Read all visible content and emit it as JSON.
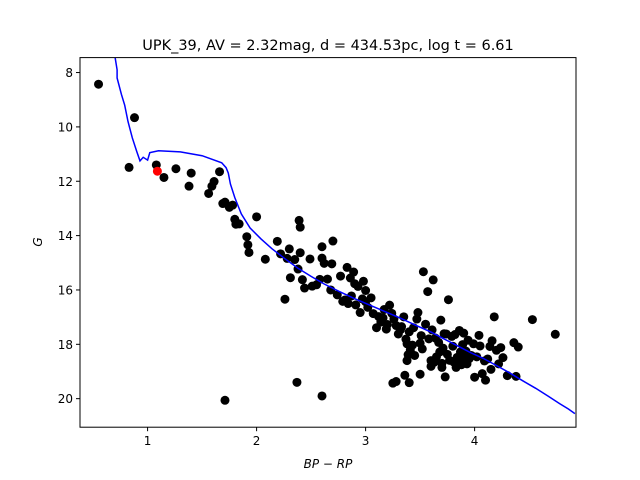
{
  "chart_data": {
    "type": "scatter",
    "title": "UPK_39, AV = 2.32mag, d = 434.53pc, log t = 6.61",
    "xlabel": "BP − RP",
    "ylabel": "G",
    "xlim": [
      0.38,
      4.93
    ],
    "ylim": [
      21.05,
      7.45
    ],
    "y_inverted": true,
    "grid": false,
    "xticks": [
      1,
      2,
      3,
      4
    ],
    "yticks": [
      8,
      10,
      12,
      14,
      16,
      18,
      20
    ],
    "colors": {
      "stars": "#000000",
      "highlight": "#ff0000",
      "isochrone": "#0000ff"
    },
    "highlight_point": {
      "x": 1.09,
      "y": 11.63
    },
    "points": [
      [
        0.55,
        8.43
      ],
      [
        0.88,
        9.66
      ],
      [
        0.83,
        11.49
      ],
      [
        1.08,
        11.4
      ],
      [
        1.15,
        11.86
      ],
      [
        1.26,
        11.54
      ],
      [
        1.38,
        12.18
      ],
      [
        1.4,
        11.7
      ],
      [
        1.56,
        12.45
      ],
      [
        1.59,
        12.18
      ],
      [
        1.61,
        12.01
      ],
      [
        1.66,
        11.65
      ],
      [
        1.69,
        12.82
      ],
      [
        1.71,
        12.77
      ],
      [
        1.75,
        12.96
      ],
      [
        1.78,
        12.88
      ],
      [
        1.8,
        13.4
      ],
      [
        1.81,
        13.58
      ],
      [
        1.84,
        13.57
      ],
      [
        1.91,
        14.04
      ],
      [
        1.92,
        14.34
      ],
      [
        1.93,
        14.62
      ],
      [
        2.0,
        13.31
      ],
      [
        2.08,
        14.87
      ],
      [
        2.19,
        14.21
      ],
      [
        2.22,
        14.67
      ],
      [
        2.26,
        16.34
      ],
      [
        2.28,
        14.84
      ],
      [
        2.3,
        14.49
      ],
      [
        2.31,
        15.55
      ],
      [
        2.35,
        14.88
      ],
      [
        2.38,
        15.23
      ],
      [
        2.39,
        13.44
      ],
      [
        2.4,
        13.69
      ],
      [
        2.4,
        14.63
      ],
      [
        2.42,
        15.62
      ],
      [
        2.44,
        15.93
      ],
      [
        2.49,
        14.86
      ],
      [
        2.51,
        15.86
      ],
      [
        2.55,
        15.81
      ],
      [
        2.58,
        15.61
      ],
      [
        2.6,
        14.83
      ],
      [
        2.6,
        14.41
      ],
      [
        2.62,
        15.02
      ],
      [
        2.65,
        15.6
      ],
      [
        2.68,
        16.0
      ],
      [
        2.69,
        15.04
      ],
      [
        2.7,
        14.2
      ],
      [
        2.74,
        16.18
      ],
      [
        2.77,
        15.49
      ],
      [
        2.79,
        16.42
      ],
      [
        2.81,
        16.37
      ],
      [
        2.83,
        15.17
      ],
      [
        2.84,
        16.5
      ],
      [
        2.86,
        15.56
      ],
      [
        2.87,
        16.22
      ],
      [
        2.89,
        15.34
      ],
      [
        2.9,
        15.77
      ],
      [
        2.91,
        16.55
      ],
      [
        2.93,
        15.87
      ],
      [
        2.95,
        16.83
      ],
      [
        2.97,
        16.33
      ],
      [
        2.98,
        15.68
      ],
      [
        3.0,
        16.43
      ],
      [
        3.0,
        16.02
      ],
      [
        3.02,
        16.64
      ],
      [
        3.05,
        16.29
      ],
      [
        3.07,
        16.87
      ],
      [
        3.1,
        17.39
      ],
      [
        3.12,
        16.98
      ],
      [
        3.14,
        17.18
      ],
      [
        3.16,
        17.03
      ],
      [
        3.17,
        16.72
      ],
      [
        3.19,
        17.44
      ],
      [
        3.2,
        17.27
      ],
      [
        3.22,
        16.56
      ],
      [
        3.24,
        16.86
      ],
      [
        3.26,
        17.07
      ],
      [
        3.28,
        17.31
      ],
      [
        3.3,
        17.62
      ],
      [
        3.32,
        17.46
      ],
      [
        3.33,
        17.35
      ],
      [
        3.35,
        16.99
      ],
      [
        3.37,
        17.81
      ],
      [
        3.38,
        17.98
      ],
      [
        3.39,
        18.38
      ],
      [
        3.4,
        17.54
      ],
      [
        3.41,
        18.21
      ],
      [
        3.43,
        18.03
      ],
      [
        3.44,
        17.39
      ],
      [
        3.45,
        18.41
      ],
      [
        3.47,
        17.07
      ],
      [
        3.48,
        16.83
      ],
      [
        3.5,
        17.96
      ],
      [
        3.51,
        17.68
      ],
      [
        3.52,
        18.17
      ],
      [
        3.53,
        15.33
      ],
      [
        3.55,
        17.26
      ],
      [
        3.57,
        16.06
      ],
      [
        3.58,
        17.8
      ],
      [
        3.6,
        18.81
      ],
      [
        3.61,
        17.47
      ],
      [
        3.62,
        15.63
      ],
      [
        3.63,
        18.66
      ],
      [
        3.64,
        17.77
      ],
      [
        3.65,
        18.46
      ],
      [
        3.67,
        17.93
      ],
      [
        3.68,
        18.28
      ],
      [
        3.69,
        17.11
      ],
      [
        3.7,
        18.85
      ],
      [
        3.71,
        18.14
      ],
      [
        3.72,
        17.61
      ],
      [
        3.73,
        19.2
      ],
      [
        3.74,
        17.62
      ],
      [
        3.75,
        18.37
      ],
      [
        3.76,
        16.36
      ],
      [
        3.77,
        18.59
      ],
      [
        3.79,
        17.71
      ],
      [
        3.8,
        18.07
      ],
      [
        3.81,
        18.66
      ],
      [
        3.82,
        17.64
      ],
      [
        3.83,
        18.85
      ],
      [
        3.84,
        18.48
      ],
      [
        3.85,
        18.59
      ],
      [
        3.86,
        17.49
      ],
      [
        3.87,
        18.28
      ],
      [
        3.88,
        18.75
      ],
      [
        3.89,
        18.01
      ],
      [
        3.9,
        17.59
      ],
      [
        3.91,
        18.5
      ],
      [
        3.92,
        18.25
      ],
      [
        3.93,
        18.72
      ],
      [
        3.94,
        17.85
      ],
      [
        3.95,
        18.53
      ],
      [
        3.97,
        18.41
      ],
      [
        3.99,
        17.98
      ],
      [
        4.0,
        19.21
      ],
      [
        4.02,
        18.46
      ],
      [
        4.04,
        17.67
      ],
      [
        4.05,
        18.06
      ],
      [
        4.07,
        19.08
      ],
      [
        4.09,
        18.61
      ],
      [
        4.1,
        19.32
      ],
      [
        4.12,
        18.54
      ],
      [
        4.14,
        18.08
      ],
      [
        4.15,
        18.92
      ],
      [
        4.16,
        17.87
      ],
      [
        4.18,
        16.99
      ],
      [
        4.2,
        18.22
      ],
      [
        4.22,
        18.72
      ],
      [
        4.24,
        18.12
      ],
      [
        4.26,
        18.49
      ],
      [
        4.3,
        19.15
      ],
      [
        4.36,
        17.94
      ],
      [
        4.38,
        19.18
      ],
      [
        4.53,
        17.09
      ],
      [
        4.74,
        17.63
      ],
      [
        4.4,
        18.1
      ],
      [
        3.25,
        19.43
      ],
      [
        3.28,
        19.37
      ],
      [
        3.36,
        19.14
      ],
      [
        3.4,
        19.41
      ],
      [
        3.5,
        19.1
      ],
      [
        3.38,
        18.6
      ],
      [
        3.6,
        18.6
      ],
      [
        3.7,
        18.7
      ],
      [
        2.37,
        19.4
      ],
      [
        2.6,
        19.9
      ],
      [
        1.71,
        20.06
      ]
    ],
    "isochrone": [
      [
        0.7,
        7.4
      ],
      [
        0.72,
        7.9
      ],
      [
        0.72,
        8.2
      ],
      [
        0.76,
        8.8
      ],
      [
        0.79,
        9.2
      ],
      [
        0.82,
        9.8
      ],
      [
        0.86,
        10.4
      ],
      [
        0.9,
        10.9
      ],
      [
        0.93,
        11.25
      ],
      [
        0.96,
        11.12
      ],
      [
        1.0,
        11.22
      ],
      [
        1.02,
        10.95
      ],
      [
        1.1,
        10.88
      ],
      [
        1.3,
        10.92
      ],
      [
        1.5,
        11.06
      ],
      [
        1.68,
        11.32
      ],
      [
        1.72,
        11.5
      ],
      [
        1.74,
        11.7
      ],
      [
        1.76,
        12.1
      ],
      [
        1.8,
        12.6
      ],
      [
        1.86,
        13.2
      ],
      [
        1.94,
        13.72
      ],
      [
        2.04,
        14.12
      ],
      [
        2.14,
        14.48
      ],
      [
        2.26,
        14.85
      ],
      [
        2.38,
        15.2
      ],
      [
        2.5,
        15.5
      ],
      [
        2.62,
        15.78
      ],
      [
        2.76,
        16.06
      ],
      [
        2.9,
        16.32
      ],
      [
        3.04,
        16.56
      ],
      [
        3.18,
        16.8
      ],
      [
        3.32,
        17.04
      ],
      [
        3.46,
        17.3
      ],
      [
        3.6,
        17.55
      ],
      [
        3.72,
        17.8
      ],
      [
        3.84,
        18.05
      ],
      [
        3.96,
        18.3
      ],
      [
        4.08,
        18.52
      ],
      [
        4.2,
        18.78
      ],
      [
        4.32,
        19.05
      ],
      [
        4.44,
        19.34
      ],
      [
        4.56,
        19.62
      ],
      [
        4.68,
        19.92
      ],
      [
        4.78,
        20.18
      ],
      [
        4.86,
        20.38
      ],
      [
        4.92,
        20.55
      ]
    ]
  }
}
